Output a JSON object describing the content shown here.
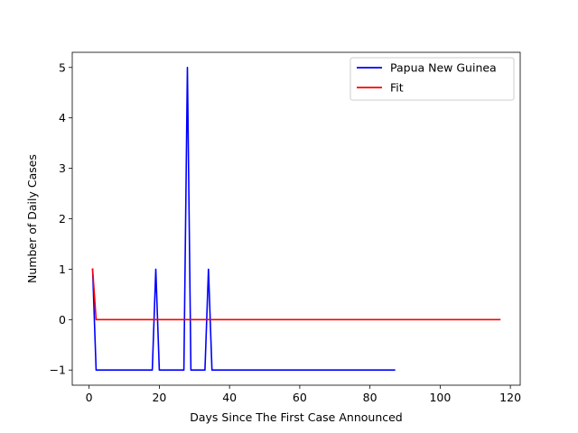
{
  "chart_data": {
    "type": "line",
    "title": "",
    "xlabel": "Days Since The First Case Announced",
    "ylabel": "Number of Daily Cases",
    "xlim": [
      -4.8,
      122.8
    ],
    "ylim": [
      -1.3,
      5.3
    ],
    "xticks": [
      0,
      20,
      40,
      60,
      80,
      100,
      120
    ],
    "yticks": [
      -1,
      0,
      1,
      2,
      3,
      4,
      5
    ],
    "ytick_labels": [
      "−1",
      "0",
      "1",
      "2",
      "3",
      "4",
      "5"
    ],
    "grid": false,
    "legend_position": "top-right",
    "series": [
      {
        "name": "Papua New Guinea",
        "color": "#0000ff",
        "x": [
          1,
          2,
          18,
          19,
          20,
          27,
          28,
          29,
          33,
          34,
          35,
          87
        ],
        "y": [
          1,
          -1,
          -1,
          1,
          -1,
          -1,
          5,
          -1,
          -1,
          1,
          -1,
          -1
        ]
      },
      {
        "name": "Fit",
        "color": "#ff0000",
        "x": [
          1,
          2,
          117
        ],
        "y": [
          1,
          0,
          0
        ]
      }
    ]
  }
}
